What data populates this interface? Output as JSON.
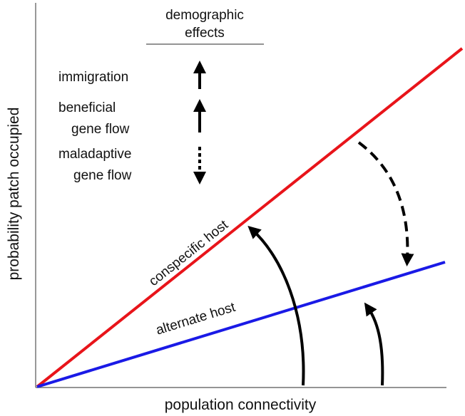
{
  "header": {
    "title_lines": [
      "demographic",
      "effects"
    ]
  },
  "legend": {
    "items": [
      {
        "label_lines": [
          "immigration"
        ]
      },
      {
        "label_lines": [
          "beneficial",
          "gene flow"
        ]
      },
      {
        "label_lines": [
          "maladaptive",
          "gene flow"
        ]
      }
    ]
  },
  "lines": [
    {
      "label": "conspecific host"
    },
    {
      "label": "alternate host"
    }
  ],
  "axes": {
    "x_label": "population connectivity",
    "y_label": "probability patch occupied"
  }
}
